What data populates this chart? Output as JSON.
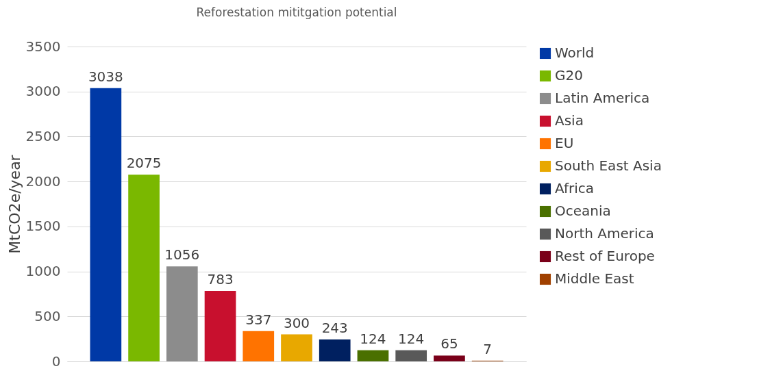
{
  "chart_data": {
    "type": "bar",
    "title": "Reforestation mititgation potential",
    "ylabel": "MtCO2e/year",
    "categories": [
      null
    ],
    "series": [
      {
        "name": "World",
        "color": "#0039a6",
        "values": [
          3038
        ]
      },
      {
        "name": "G20",
        "color": "#7ab800",
        "values": [
          2075
        ]
      },
      {
        "name": "Latin America",
        "color": "#8c8c8c",
        "values": [
          1056
        ]
      },
      {
        "name": "Asia",
        "color": "#c8102e",
        "values": [
          783
        ]
      },
      {
        "name": "EU",
        "color": "#ff7300",
        "values": [
          337
        ]
      },
      {
        "name": "South East Asia",
        "color": "#e8a800",
        "values": [
          300
        ]
      },
      {
        "name": "Africa",
        "color": "#002060",
        "values": [
          243
        ]
      },
      {
        "name": "Oceania",
        "color": "#4a7000",
        "values": [
          124
        ]
      },
      {
        "name": "North America",
        "color": "#595959",
        "values": [
          124
        ]
      },
      {
        "name": "Rest of Europe",
        "color": "#7a0019",
        "values": [
          65
        ]
      },
      {
        "name": "Middle East",
        "color": "#a04000",
        "values": [
          7
        ]
      }
    ],
    "ylim": [
      0,
      3500
    ],
    "yticks": [
      0,
      500,
      1000,
      1500,
      2000,
      2500,
      3000,
      3500
    ],
    "grid": "y",
    "legend": "right",
    "data_labels": true
  }
}
